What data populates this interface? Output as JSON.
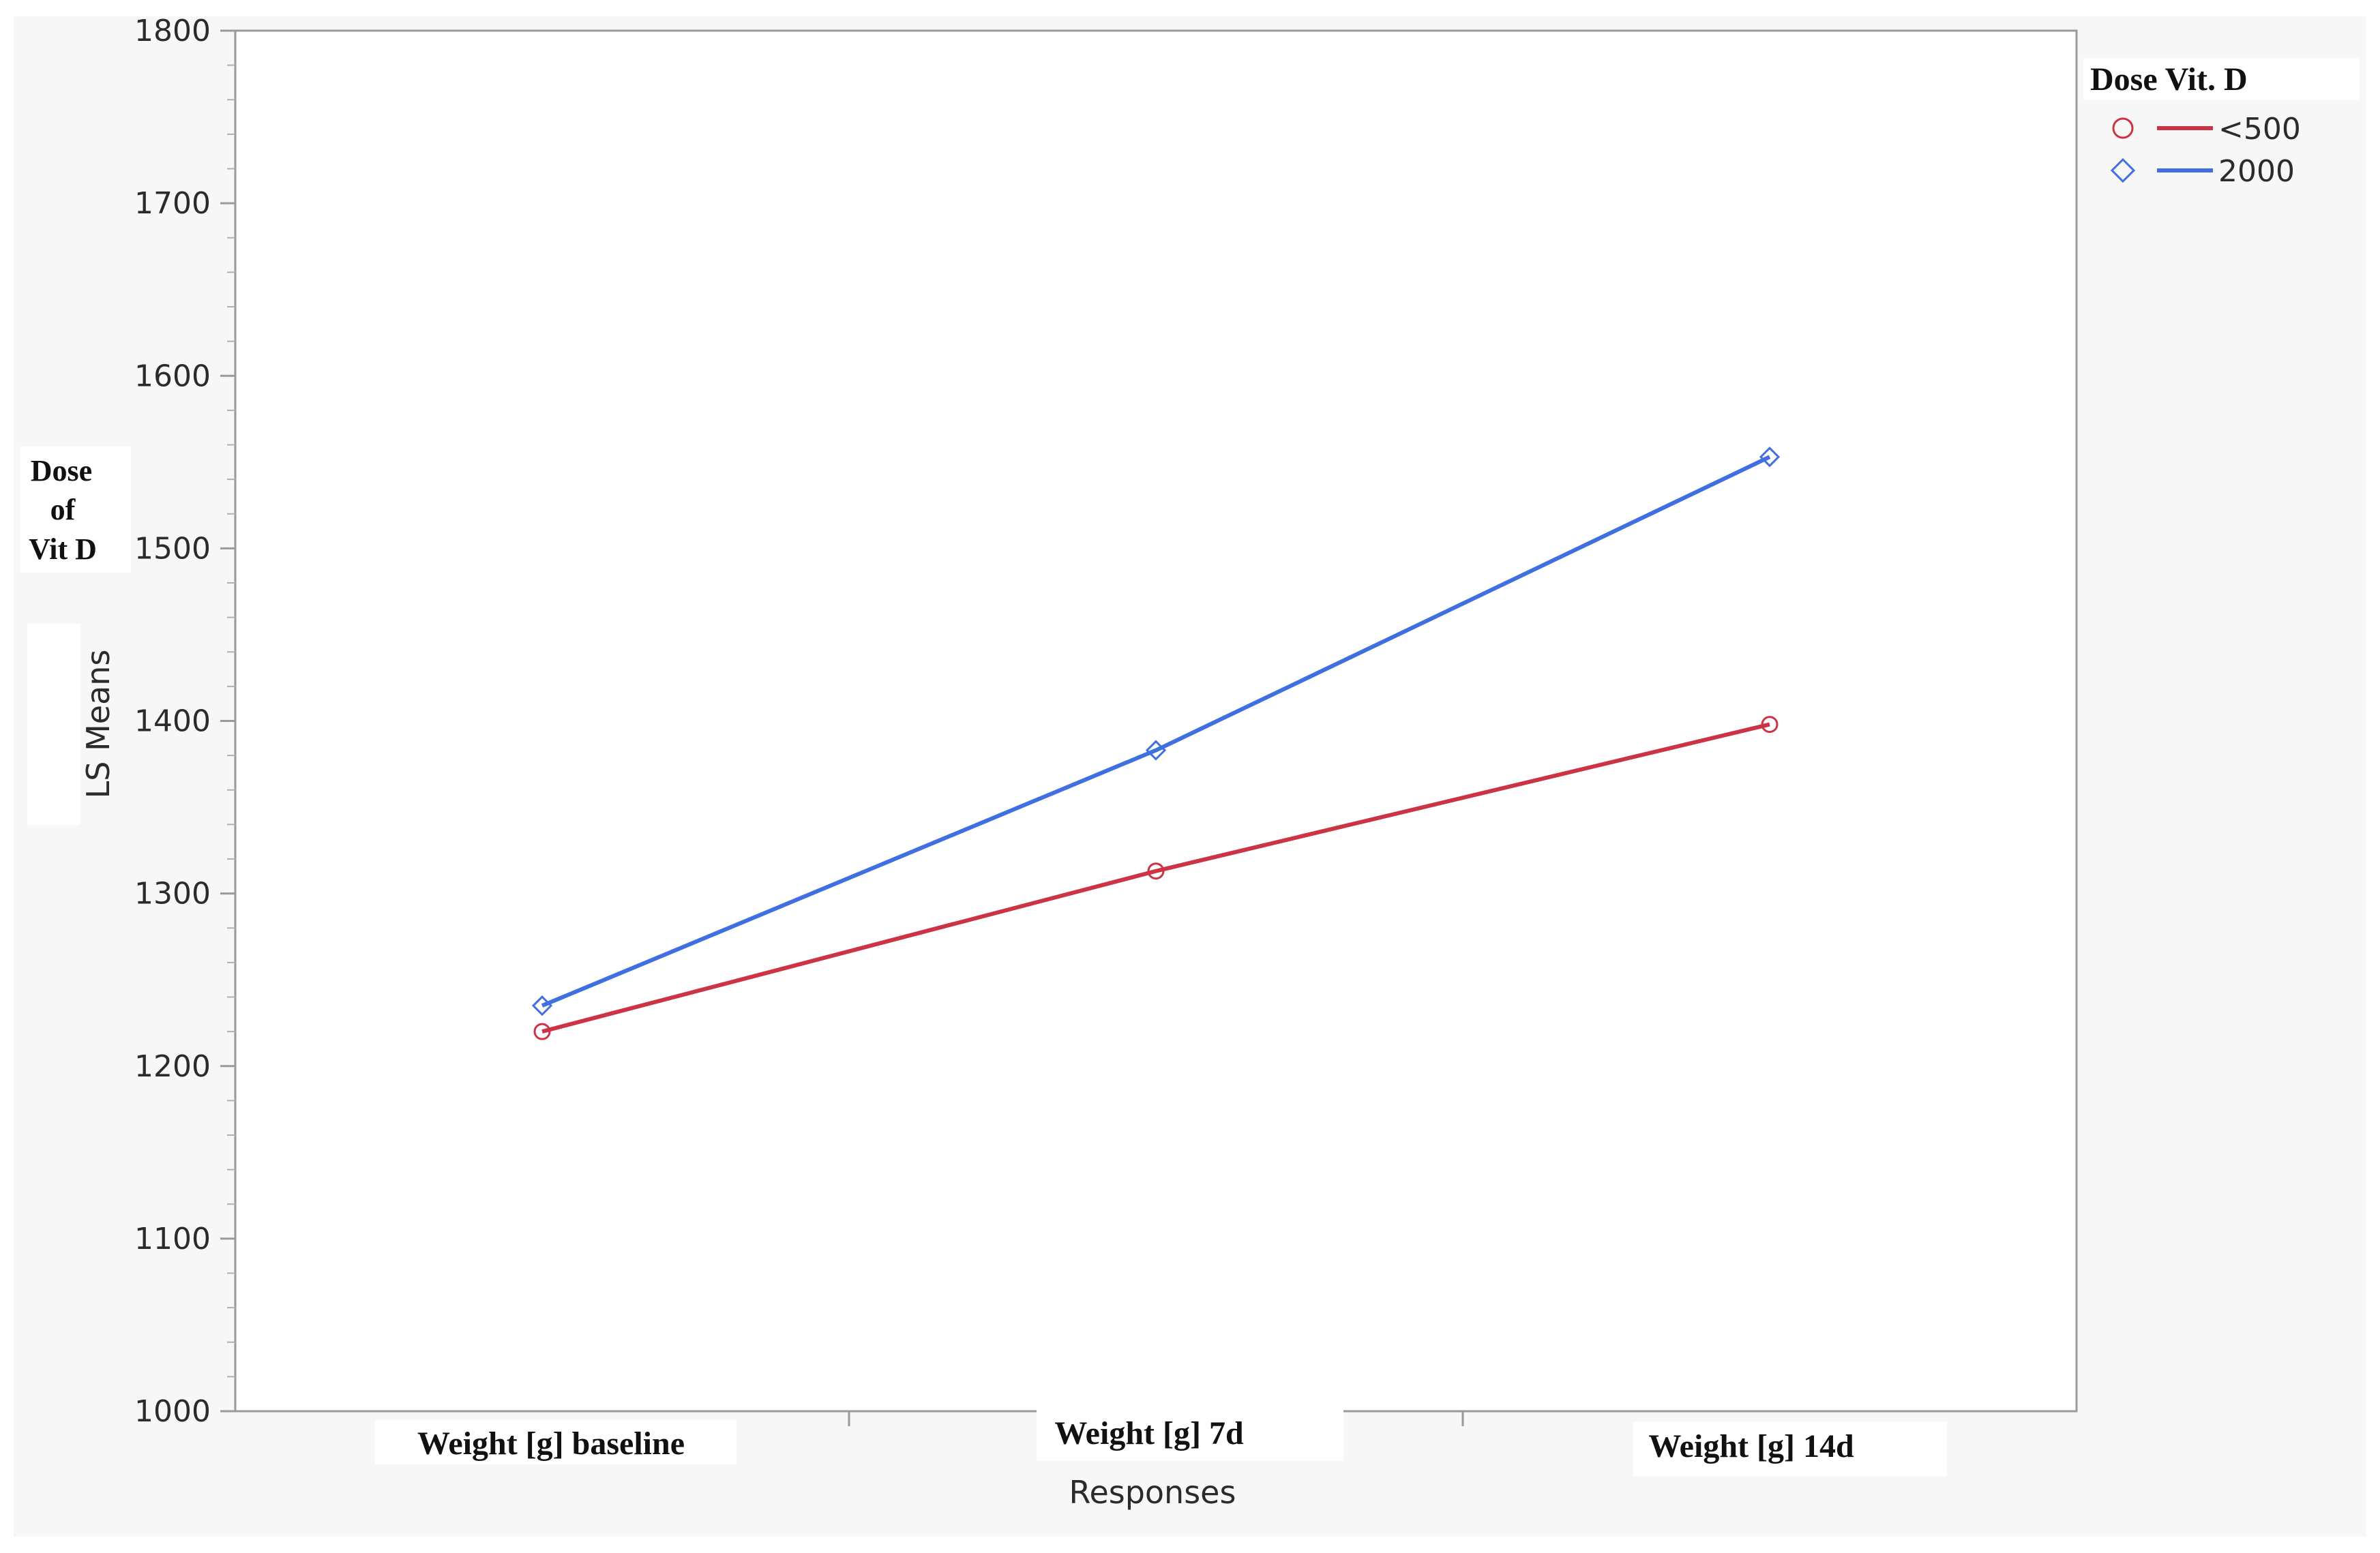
{
  "chart_data": {
    "type": "line",
    "categories": [
      "Weight [g] baseline",
      "Weight [g] 7d",
      "Weight [g] 14d"
    ],
    "xlabel": "Responses",
    "ylabel": "LS Means",
    "side_title_lines": [
      "Dose",
      "of",
      "Vit D"
    ],
    "yticks": [
      1000,
      1100,
      1200,
      1300,
      1400,
      1500,
      1600,
      1700,
      1800
    ],
    "ylim": [
      1000,
      1800
    ],
    "grid": false,
    "legend": {
      "title": "Dose Vit. D",
      "placement": "right"
    },
    "series": [
      {
        "name": "<500",
        "values": [
          1220,
          1313,
          1398
        ],
        "color": "#cc3344",
        "marker": "circle"
      },
      {
        "name": "2000",
        "values": [
          1235,
          1383,
          1553
        ],
        "color": "#3f6fe0",
        "marker": "diamond"
      }
    ]
  }
}
